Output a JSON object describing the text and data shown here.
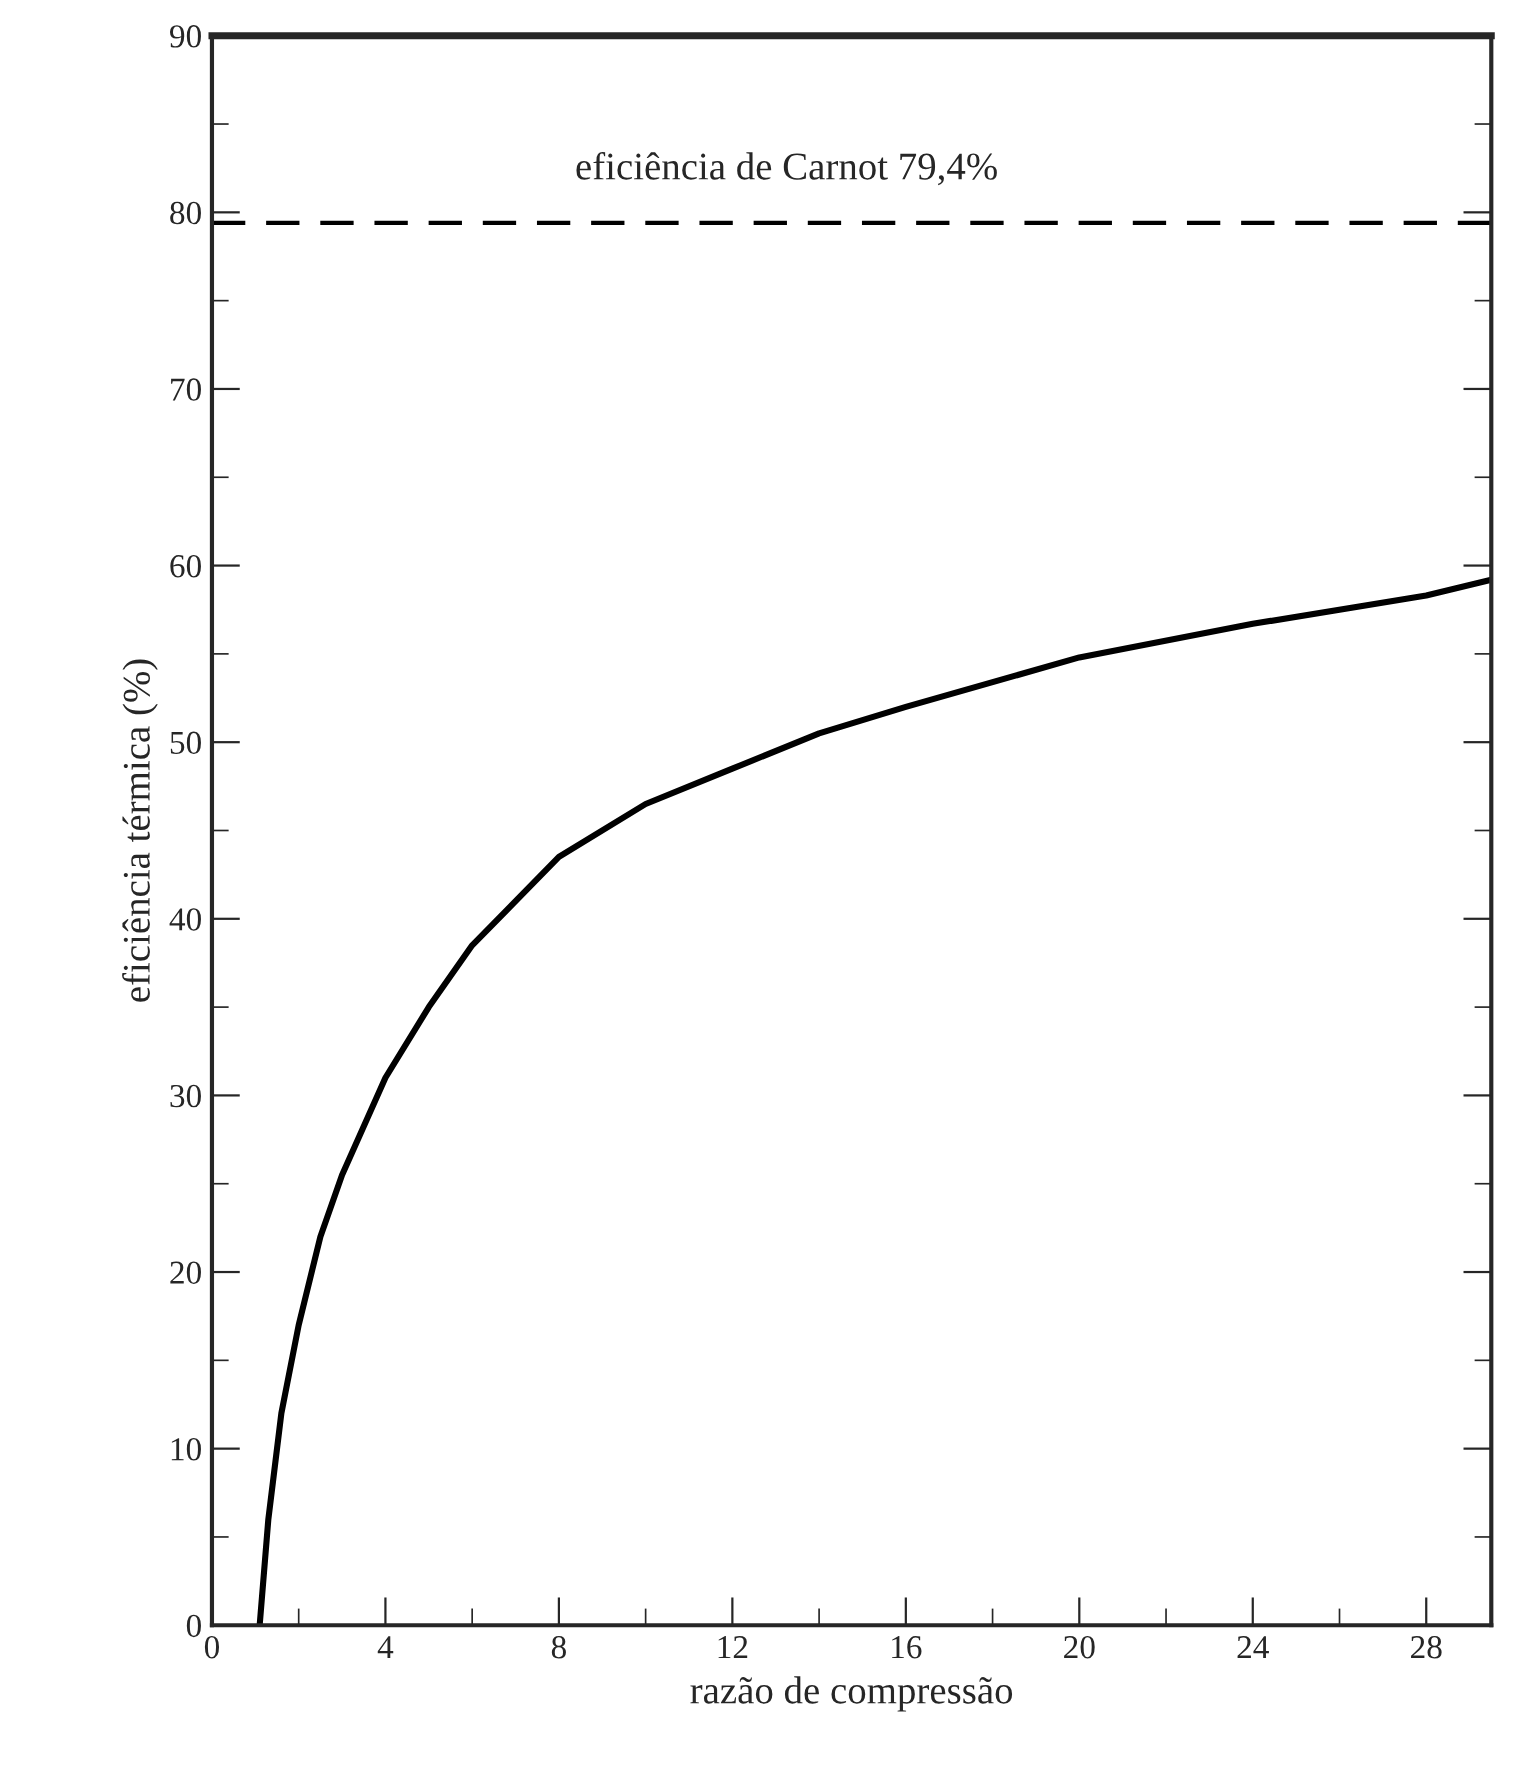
{
  "chart_data": {
    "type": "line",
    "xlabel": "razão de compressão",
    "ylabel": "eficiência térmica (%)",
    "x": [
      1.1,
      1.3,
      1.6,
      2,
      2.5,
      3,
      4,
      5,
      6,
      8,
      10,
      12,
      14,
      16,
      20,
      24,
      28,
      29.5
    ],
    "series": [
      {
        "color": "#000000",
        "values": [
          0,
          6,
          12,
          17,
          22,
          25.5,
          31,
          35,
          38.5,
          43.5,
          46.5,
          48.5,
          50.5,
          52,
          54.8,
          56.7,
          58.3,
          59.2
        ]
      }
    ],
    "xlim": [
      0,
      29.5
    ],
    "xticks": [
      0,
      4,
      8,
      12,
      16,
      20,
      24,
      28
    ],
    "ylim": [
      0,
      90
    ],
    "yticks": [
      0,
      10,
      20,
      30,
      40,
      50,
      60,
      70,
      80,
      90
    ],
    "ref_lines": [
      {
        "axis": "y",
        "value": 79.4,
        "label": "eficiência de Carnot 79,4%",
        "color": "#000000",
        "line_style": "dashed"
      }
    ],
    "grid": false,
    "marker": "none",
    "line_style": "solid"
  }
}
